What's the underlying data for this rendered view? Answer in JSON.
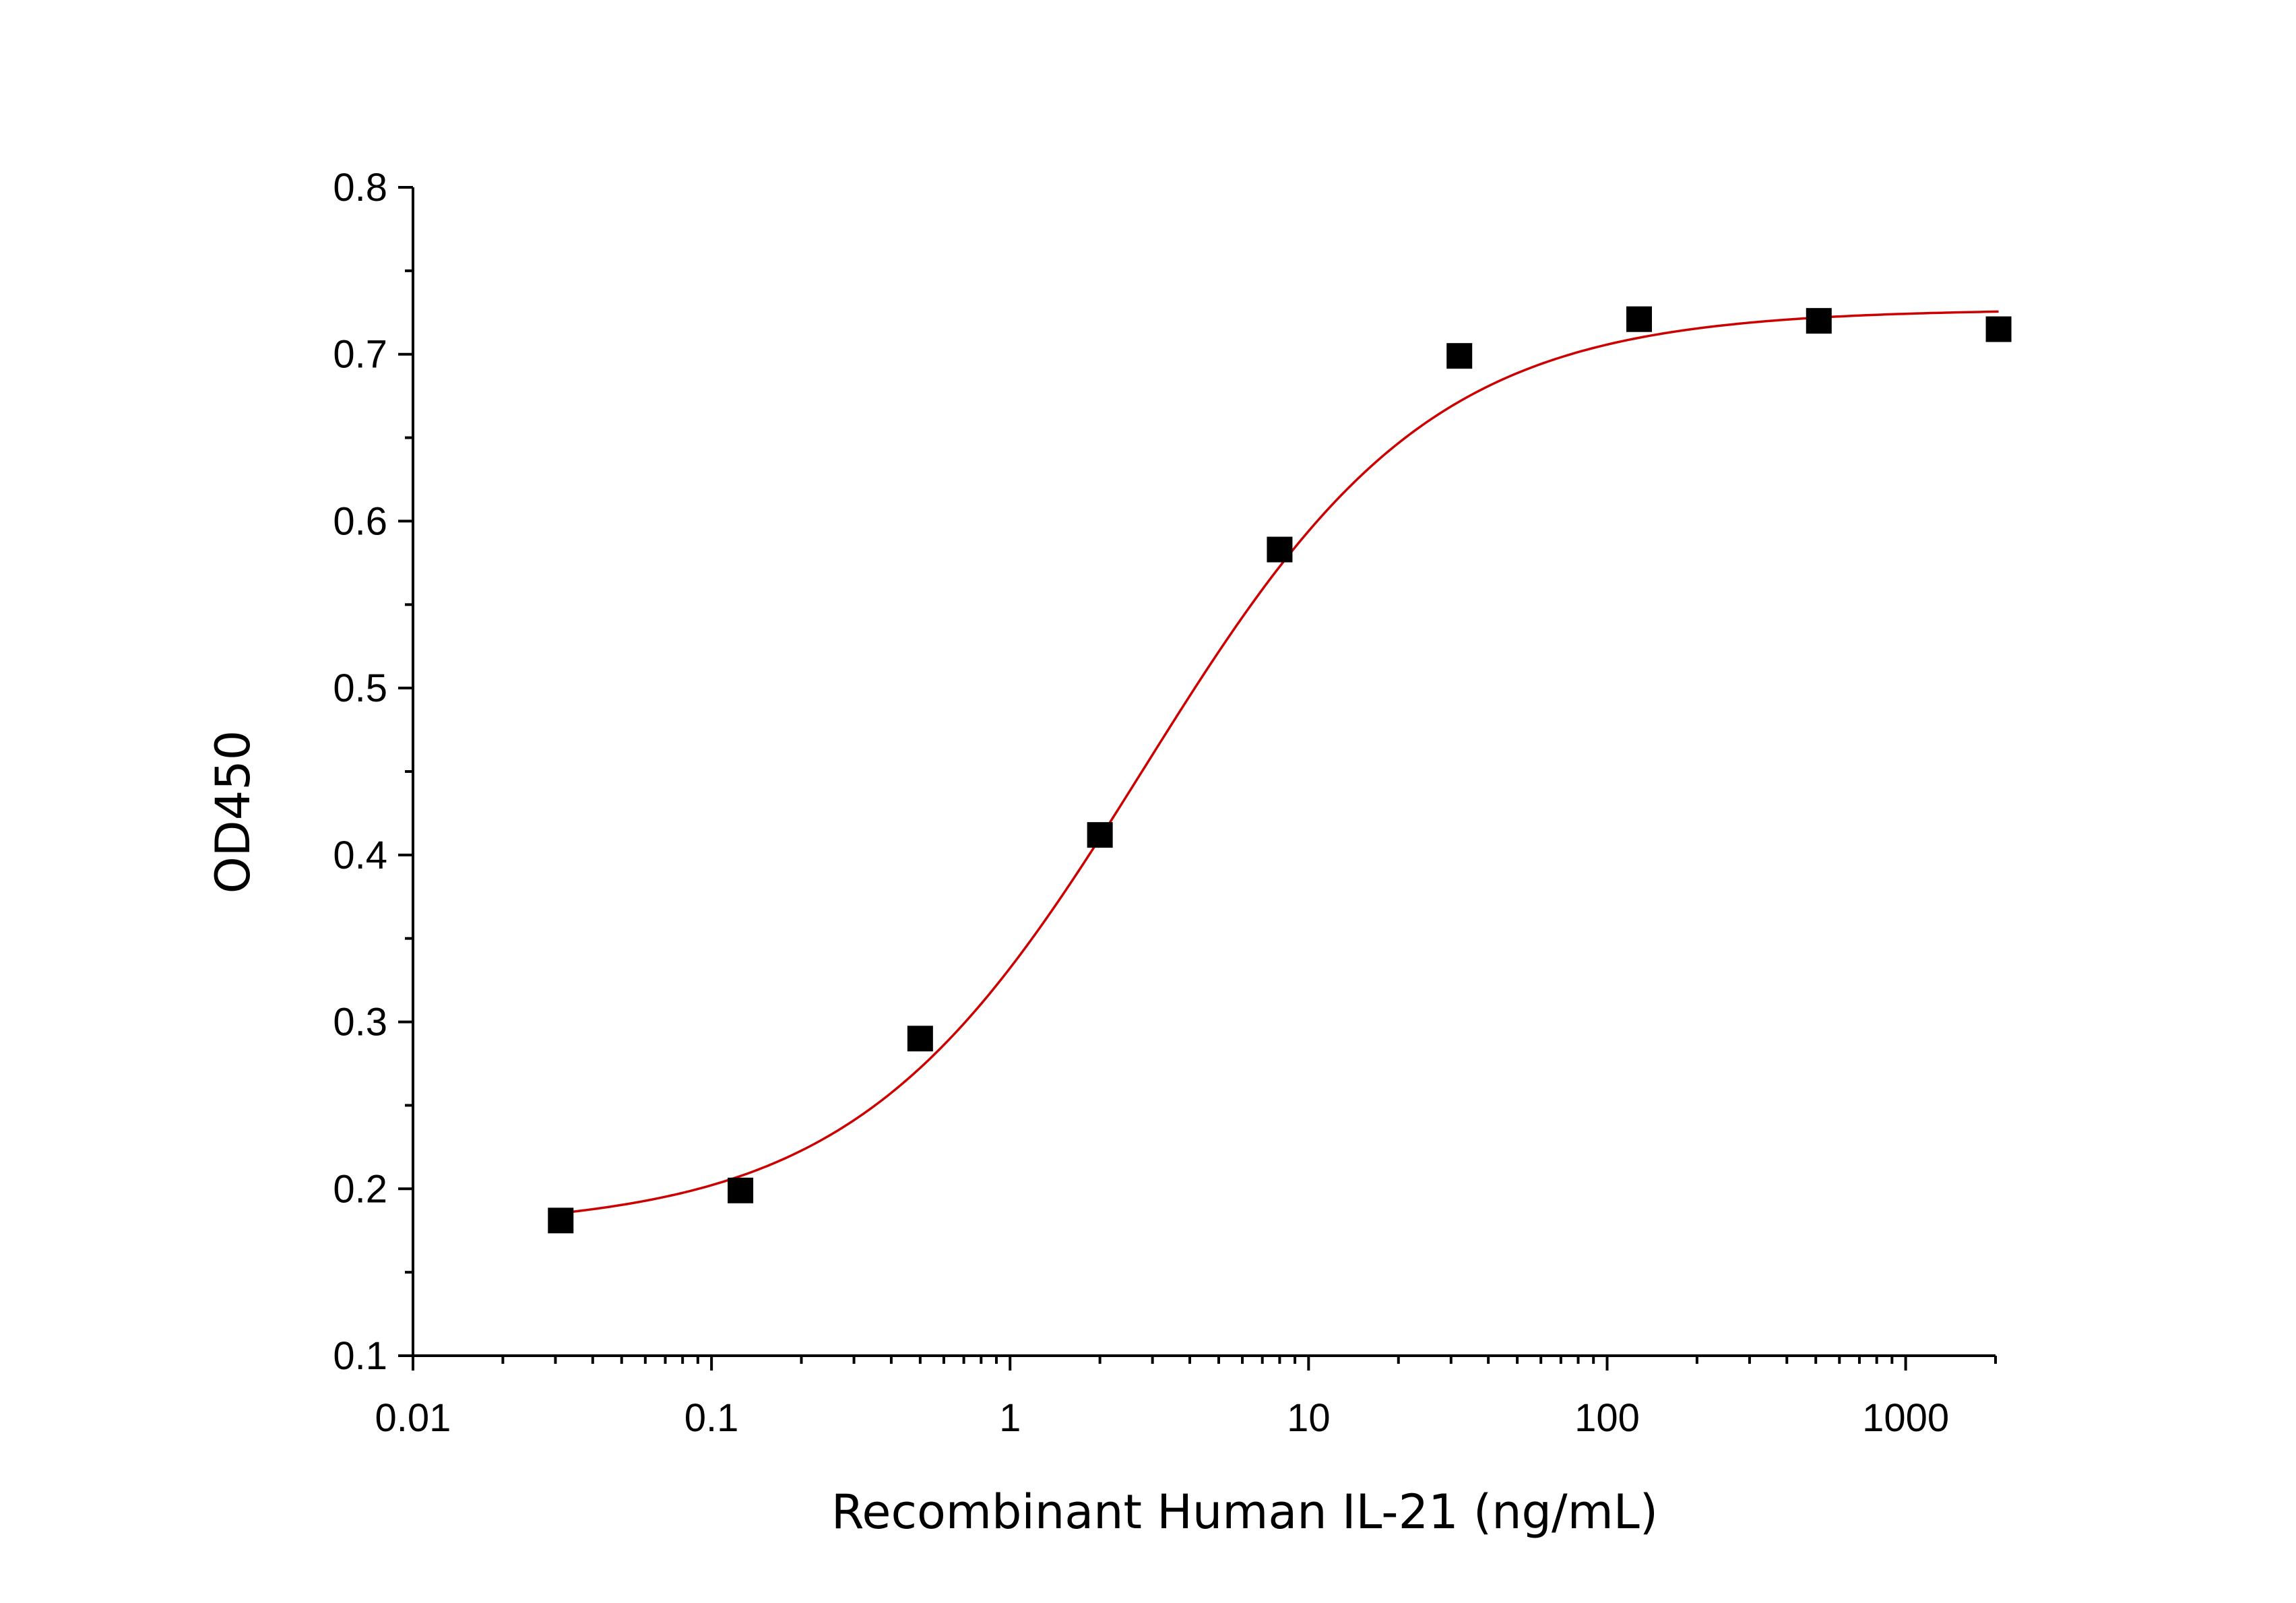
{
  "chart_data": {
    "type": "scatter",
    "title": "",
    "xlabel": "Recombinant Human IL-21 (ng/mL)",
    "ylabel": "OD450",
    "x_scale": "log",
    "xlim": [
      0.01,
      2000
    ],
    "ylim": [
      0.1,
      0.8
    ],
    "x_ticks": [
      0.01,
      0.1,
      1,
      10,
      100,
      1000
    ],
    "x_tick_labels": [
      "0.01",
      "0.1",
      "1",
      "10",
      "100",
      "1000"
    ],
    "y_ticks": [
      0.1,
      0.2,
      0.3,
      0.4,
      0.5,
      0.6,
      0.7,
      0.8
    ],
    "y_tick_labels": [
      "0.1",
      "0.2",
      "0.3",
      "0.4",
      "0.5",
      "0.6",
      "0.7",
      "0.8"
    ],
    "grid": false,
    "legend": "none",
    "series": [
      {
        "kind": "points",
        "marker": "square",
        "color": "#000000",
        "x": [
          0.03125,
          0.125,
          0.5,
          2,
          8,
          32,
          128,
          512,
          2048
        ],
        "y": [
          0.181,
          0.199,
          0.29,
          0.412,
          0.583,
          0.699,
          0.721,
          0.72,
          0.715
        ]
      },
      {
        "kind": "fit-curve",
        "color": "#cc0000",
        "x_range": [
          0.03125,
          2048
        ],
        "y": {
          "bottom": 0.176,
          "top": 0.727,
          "ec50": 2.8,
          "hill": 0.9
        }
      }
    ]
  }
}
